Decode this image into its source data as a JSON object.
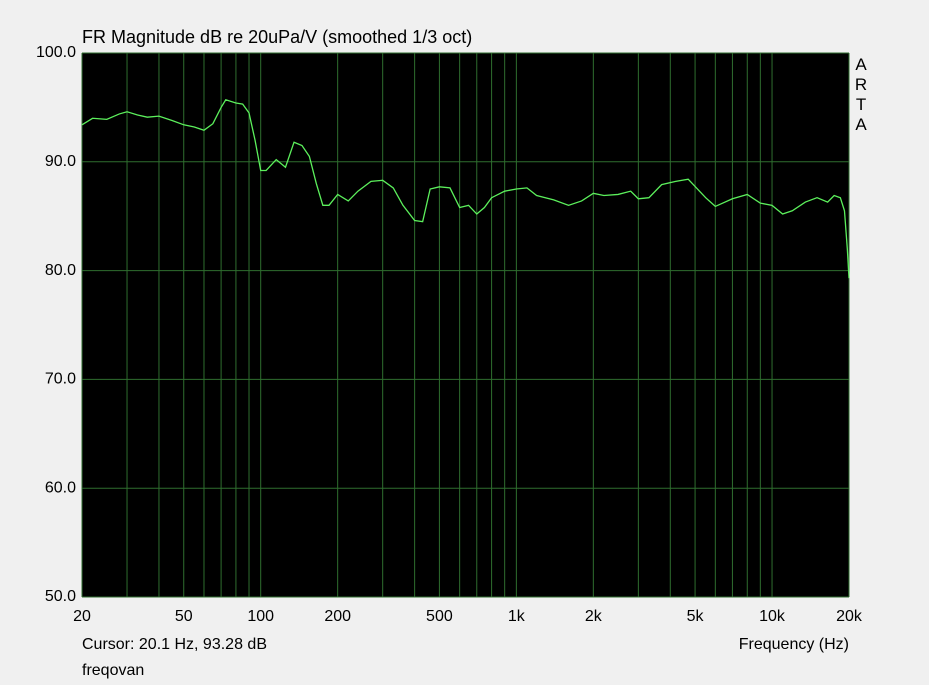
{
  "chart_data": {
    "type": "line",
    "title": "FR Magnitude dB re 20uPa/V (smoothed 1/3 oct)",
    "watermark": "ARTA",
    "cursor_text": "Cursor: 20.1 Hz, 93.28 dB",
    "footer_text": "freqovan",
    "x_label": "Frequency (Hz)",
    "xscale": "log",
    "grid": true,
    "color": "#5cf05c",
    "grid_color": "#2f6e2f",
    "background": "#000000",
    "xlim": [
      20,
      20000
    ],
    "xticks": [
      20,
      50,
      100,
      200,
      500,
      {
        "value": 1000,
        "label": "1k"
      },
      {
        "value": 2000,
        "label": "2k"
      },
      {
        "value": 5000,
        "label": "5k"
      },
      {
        "value": 10000,
        "label": "10k"
      },
      {
        "value": 20000,
        "label": "20k"
      }
    ],
    "xminor": [
      30,
      40,
      60,
      70,
      80,
      90,
      300,
      400,
      600,
      700,
      800,
      900,
      3000,
      4000,
      6000,
      7000,
      8000,
      9000
    ],
    "ylim": [
      50,
      100
    ],
    "yticks": [
      {
        "value": 50,
        "label": "50.0"
      },
      {
        "value": 60,
        "label": "60.0"
      },
      {
        "value": 70,
        "label": "70.0"
      },
      {
        "value": 80,
        "label": "80.0"
      },
      {
        "value": 90,
        "label": "90.0"
      },
      {
        "value": 100,
        "label": "100.0"
      }
    ],
    "x": [
      20,
      22,
      25,
      28,
      30,
      33,
      36,
      40,
      45,
      50,
      55,
      60,
      65,
      70,
      73,
      80,
      85,
      90,
      95,
      100,
      105,
      115,
      125,
      135,
      145,
      155,
      165,
      175,
      185,
      200,
      220,
      240,
      270,
      300,
      330,
      360,
      400,
      430,
      460,
      500,
      550,
      600,
      650,
      700,
      750,
      800,
      900,
      1000,
      1100,
      1200,
      1400,
      1600,
      1800,
      2000,
      2200,
      2500,
      2800,
      3000,
      3300,
      3700,
      4200,
      4700,
      5500,
      6000,
      7000,
      8000,
      9000,
      10000,
      11000,
      12000,
      13500,
      15000,
      16500,
      17500,
      18500,
      19200,
      19700,
      20000
    ],
    "series": [
      {
        "name": "FR",
        "values": [
          93.4,
          94.0,
          93.9,
          94.4,
          94.6,
          94.3,
          94.1,
          94.2,
          93.8,
          93.4,
          93.2,
          92.9,
          93.5,
          95.0,
          95.7,
          95.4,
          95.3,
          94.5,
          92.0,
          89.2,
          89.2,
          90.2,
          89.5,
          91.8,
          91.5,
          90.5,
          88.0,
          86.0,
          86.0,
          87.0,
          86.4,
          87.3,
          88.2,
          88.3,
          87.6,
          86.0,
          84.6,
          84.5,
          87.5,
          87.7,
          87.6,
          85.8,
          86.0,
          85.2,
          85.8,
          86.7,
          87.3,
          87.5,
          87.6,
          86.9,
          86.5,
          86.0,
          86.4,
          87.1,
          86.9,
          87.0,
          87.3,
          86.6,
          86.7,
          87.9,
          88.2,
          88.4,
          86.7,
          85.9,
          86.6,
          87.0,
          86.2,
          86.0,
          85.2,
          85.5,
          86.3,
          86.7,
          86.3,
          86.9,
          86.7,
          85.5,
          82.0,
          79.3
        ]
      }
    ]
  }
}
